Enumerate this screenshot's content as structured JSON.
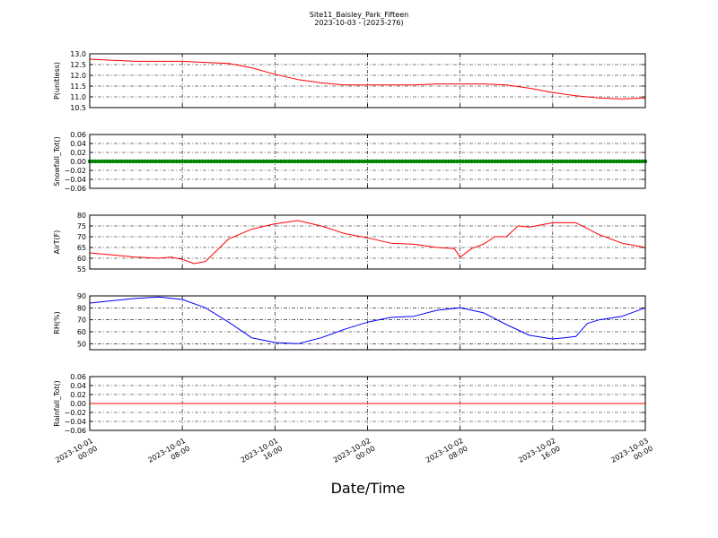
{
  "title": "Site11_Baisley_Park_Fifteen",
  "subtitle": "2023-10-03 - (2023-276)",
  "xlabel": "Date/Time",
  "colors": {
    "red": "#ff0000",
    "green": "#008000",
    "blue": "#0000ff"
  },
  "chart_data": [
    {
      "type": "line",
      "ylabel": "P(unitless)",
      "ylim": [
        10.5,
        13.0
      ],
      "yticks": [
        "10.5",
        "11.0",
        "11.5",
        "12.0",
        "12.5",
        "13.0"
      ],
      "grid": true,
      "series": [
        {
          "color": "#ff0000",
          "x": [
            "2023-10-01 00:00",
            "2023-10-01 02:00",
            "2023-10-01 04:00",
            "2023-10-01 06:00",
            "2023-10-01 08:00",
            "2023-10-01 10:00",
            "2023-10-01 12:00",
            "2023-10-01 14:00",
            "2023-10-01 16:00",
            "2023-10-01 18:00",
            "2023-10-01 20:00",
            "2023-10-01 22:00",
            "2023-10-02 00:00",
            "2023-10-02 02:00",
            "2023-10-02 04:00",
            "2023-10-02 06:00",
            "2023-10-02 08:00",
            "2023-10-02 10:00",
            "2023-10-02 12:00",
            "2023-10-02 14:00",
            "2023-10-02 16:00",
            "2023-10-02 18:00",
            "2023-10-02 20:00",
            "2023-10-02 22:00",
            "2023-10-03 00:00"
          ],
          "y": [
            12.75,
            12.7,
            12.65,
            12.65,
            12.65,
            12.6,
            12.55,
            12.35,
            12.05,
            11.8,
            11.65,
            11.55,
            11.55,
            11.55,
            11.55,
            11.6,
            11.6,
            11.6,
            11.55,
            11.4,
            11.2,
            11.05,
            10.95,
            10.9,
            10.95
          ]
        }
      ]
    },
    {
      "type": "scatter",
      "ylabel": "Snowfall_Tot()",
      "ylim": [
        -0.06,
        0.06
      ],
      "yticks": [
        "−0.06",
        "−0.04",
        "−0.02",
        "0.00",
        "0.02",
        "0.04",
        "0.06"
      ],
      "grid": true,
      "series": [
        {
          "color": "#008000",
          "x_range": [
            "2023-10-01 00:00",
            "2023-10-03 00:00"
          ],
          "y_constant": 0.0
        }
      ]
    },
    {
      "type": "line",
      "ylabel": "AirT(F)",
      "ylim": [
        55,
        80
      ],
      "yticks": [
        "55",
        "60",
        "65",
        "70",
        "75",
        "80"
      ],
      "grid": true,
      "series": [
        {
          "color": "#ff0000",
          "x": [
            "2023-10-01 00:00",
            "2023-10-01 02:00",
            "2023-10-01 04:00",
            "2023-10-01 06:00",
            "2023-10-01 07:00",
            "2023-10-01 08:00",
            "2023-10-01 09:00",
            "2023-10-01 10:00",
            "2023-10-01 12:00",
            "2023-10-01 14:00",
            "2023-10-01 16:00",
            "2023-10-01 18:00",
            "2023-10-01 20:00",
            "2023-10-01 22:00",
            "2023-10-02 00:00",
            "2023-10-02 02:00",
            "2023-10-02 04:00",
            "2023-10-02 06:00",
            "2023-10-02 07:30",
            "2023-10-02 08:00",
            "2023-10-02 09:00",
            "2023-10-02 10:00",
            "2023-10-02 11:00",
            "2023-10-02 12:00",
            "2023-10-02 13:00",
            "2023-10-02 14:00",
            "2023-10-02 16:00",
            "2023-10-02 18:00",
            "2023-10-02 20:00",
            "2023-10-02 22:00",
            "2023-10-03 00:00"
          ],
          "y": [
            62.5,
            61.5,
            60.5,
            60.0,
            60.5,
            59.5,
            57.5,
            58.5,
            69.0,
            73.5,
            76.0,
            77.5,
            75.0,
            71.5,
            69.5,
            67.0,
            66.5,
            65.0,
            64.5,
            60.5,
            64.5,
            66.5,
            70.0,
            70.0,
            75.0,
            74.5,
            76.5,
            76.5,
            71.0,
            67.0,
            65.0
          ]
        }
      ]
    },
    {
      "type": "line",
      "ylabel": "RH(%)",
      "ylim": [
        45,
        90
      ],
      "yticks": [
        "50",
        "60",
        "70",
        "80",
        "90"
      ],
      "grid": true,
      "series": [
        {
          "color": "#0000ff",
          "x": [
            "2023-10-01 00:00",
            "2023-10-01 02:00",
            "2023-10-01 04:00",
            "2023-10-01 06:00",
            "2023-10-01 08:00",
            "2023-10-01 10:00",
            "2023-10-01 12:00",
            "2023-10-01 14:00",
            "2023-10-01 16:00",
            "2023-10-01 18:00",
            "2023-10-01 20:00",
            "2023-10-01 22:00",
            "2023-10-02 00:00",
            "2023-10-02 02:00",
            "2023-10-02 04:00",
            "2023-10-02 06:00",
            "2023-10-02 08:00",
            "2023-10-02 10:00",
            "2023-10-02 12:00",
            "2023-10-02 14:00",
            "2023-10-02 16:00",
            "2023-10-02 17:00",
            "2023-10-02 18:00",
            "2023-10-02 19:00",
            "2023-10-02 20:00",
            "2023-10-02 22:00",
            "2023-10-03 00:00"
          ],
          "y": [
            84,
            86,
            88,
            89,
            87,
            80,
            68,
            55,
            51,
            50,
            55,
            62,
            68,
            72,
            73,
            78,
            80,
            76,
            66,
            57,
            54,
            55,
            56,
            67,
            70,
            73,
            80
          ]
        }
      ]
    },
    {
      "type": "line",
      "ylabel": "Rainfall_Tot()",
      "ylim": [
        -0.06,
        0.06
      ],
      "yticks": [
        "−0.06",
        "−0.04",
        "−0.02",
        "0.00",
        "0.02",
        "0.04",
        "0.06"
      ],
      "grid": true,
      "series": [
        {
          "color": "#ff0000",
          "x": [
            "2023-10-01 00:00",
            "2023-10-03 00:00"
          ],
          "y": [
            0.0,
            0.0
          ]
        }
      ]
    }
  ],
  "xaxis": {
    "range": [
      "2023-10-01 00:00",
      "2023-10-03 00:00"
    ],
    "ticks": [
      {
        "at": "2023-10-01 00:00",
        "line1": "2023-10-01",
        "line2": "00:00"
      },
      {
        "at": "2023-10-01 08:00",
        "line1": "2023-10-01",
        "line2": "08:00"
      },
      {
        "at": "2023-10-01 16:00",
        "line1": "2023-10-01",
        "line2": "16:00"
      },
      {
        "at": "2023-10-02 00:00",
        "line1": "2023-10-02",
        "line2": "00:00"
      },
      {
        "at": "2023-10-02 08:00",
        "line1": "2023-10-02",
        "line2": "08:00"
      },
      {
        "at": "2023-10-02 16:00",
        "line1": "2023-10-02",
        "line2": "16:00"
      },
      {
        "at": "2023-10-03 00:00",
        "line1": "2023-10-03",
        "line2": "00:00"
      }
    ]
  }
}
